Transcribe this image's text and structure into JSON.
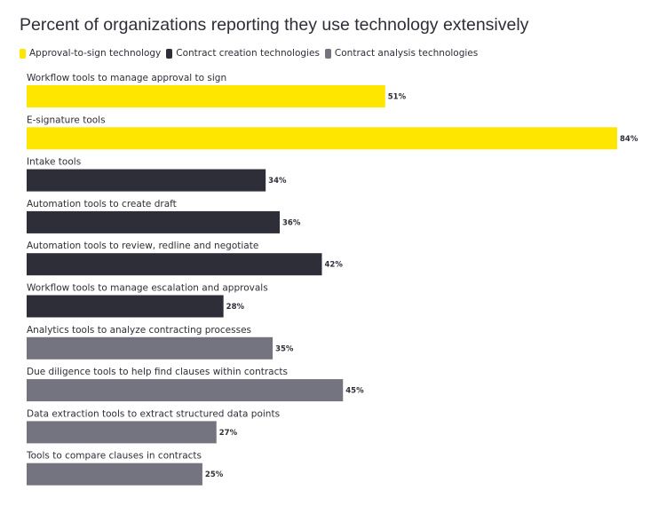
{
  "chart_data": {
    "type": "bar",
    "orientation": "horizontal",
    "title": "Percent of organizations reporting they use technology extensively",
    "xlim": [
      0,
      84
    ],
    "value_suffix": "%",
    "legend": [
      {
        "name": "Approval-to-sign technology",
        "color": "#ffe600"
      },
      {
        "name": "Contract creation technologies",
        "color": "#2e2e38"
      },
      {
        "name": "Contract analysis technologies",
        "color": "#747480"
      }
    ],
    "categories": [
      "Workflow tools to manage approval to sign",
      "E-signature tools",
      "Intake tools",
      "Automation tools to create draft",
      "Automation tools to review, redline and negotiate",
      "Workflow tools to manage escalation and approvals",
      "Analytics tools to analyze contracting processes",
      "Due diligence tools to help find clauses within contracts",
      "Data extraction tools to extract structured data points",
      "Tools to compare clauses in contracts"
    ],
    "values": [
      51,
      84,
      34,
      36,
      42,
      28,
      35,
      45,
      27,
      25
    ],
    "value_labels": [
      "51%",
      "84%",
      "34%",
      "36%",
      "42%",
      "28%",
      "35%",
      "45%",
      "27%",
      "25%"
    ],
    "groups": [
      0,
      0,
      1,
      1,
      1,
      1,
      2,
      2,
      2,
      2
    ]
  }
}
